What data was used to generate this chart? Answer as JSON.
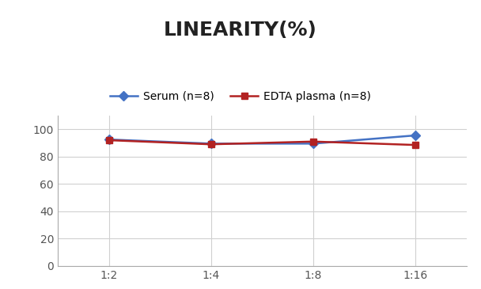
{
  "title": "LINEARITY(%)",
  "x_labels": [
    "1:2",
    "1:4",
    "1:8",
    "1:16"
  ],
  "x_values": [
    0,
    1,
    2,
    3
  ],
  "serum_values": [
    92.5,
    89.5,
    89.5,
    95.5
  ],
  "edta_values": [
    92.0,
    89.0,
    91.0,
    88.5
  ],
  "serum_label": "Serum (n=8)",
  "edta_label": "EDTA plasma (n=8)",
  "serum_color": "#4472C4",
  "edta_color": "#B22222",
  "ylim": [
    0,
    110
  ],
  "yticks": [
    0,
    20,
    40,
    60,
    80,
    100
  ],
  "background_color": "#ffffff",
  "grid_color": "#d0d0d0",
  "title_fontsize": 18,
  "legend_fontsize": 10,
  "tick_fontsize": 10
}
